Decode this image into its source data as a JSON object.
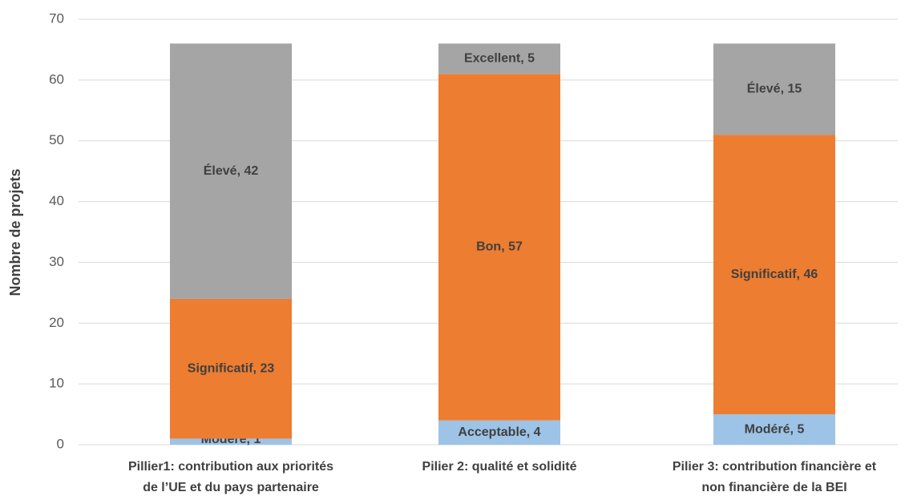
{
  "chart_data": {
    "type": "stacked_bar",
    "y_label": "Nombre de projets",
    "categories": [
      [
        "Pillier1: contribution aux priorités",
        "de l’UE et du pays partenaire"
      ],
      [
        "Pilier 2: qualité et solidité"
      ],
      [
        "Pilier 3: contribution financière et",
        "non financière de la BEI"
      ]
    ],
    "series": [
      {
        "color": "#9dc3e6",
        "values": [
          1,
          4,
          5
        ],
        "value_labels": [
          "Modéré, 1",
          "Acceptable, 4",
          "Modéré, 5"
        ]
      },
      {
        "color": "#ed7d31",
        "values": [
          23,
          57,
          46
        ],
        "value_labels": [
          "Significatif, 23",
          "Bon, 57",
          "Significatif, 46"
        ]
      },
      {
        "color": "#a5a5a5",
        "values": [
          42,
          5,
          15
        ],
        "value_labels": [
          "Élevé, 42",
          "Excellent, 5",
          "Élevé, 15"
        ]
      }
    ],
    "ylim": [
      0,
      70
    ],
    "yticks": [
      0,
      10,
      20,
      30,
      40,
      50,
      60,
      70
    ],
    "grid": true
  }
}
